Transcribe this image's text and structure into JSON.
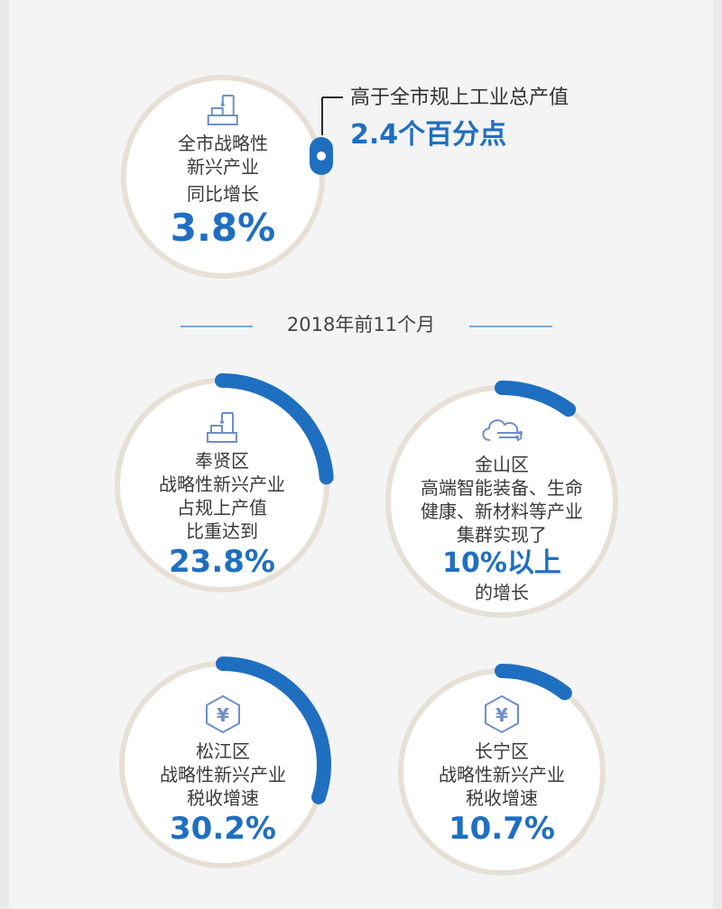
{
  "colors": {
    "accent": "#1f6fc0",
    "ring": "#e7e0d6",
    "background": "#f4f4f4",
    "icon": "#6f8fc9"
  },
  "overall": {
    "label_lines": [
      "全市战略性",
      "新兴产业",
      "同比增长"
    ],
    "value": "3.8%",
    "icon": "factory-robot-arm-icon"
  },
  "callout": {
    "label": "高于全市规上工业总产值",
    "value": "2.4个百分点"
  },
  "section_header": "2018年前11个月",
  "stats": [
    {
      "district": "奉贤区",
      "label_lines": [
        "奉贤区",
        "战略性新兴产业",
        "占规上产值",
        "比重达到"
      ],
      "value": "23.8%",
      "icon": "factory-robot-arm-icon",
      "progress": 0.238
    },
    {
      "district": "金山区",
      "label_lines": [
        "金山区",
        "高端智能装备、生命",
        "健康、新材料等产业",
        "集群实现了"
      ],
      "value": "10%以上",
      "suffix": "的增长",
      "icon": "cloud-network-icon",
      "progress": 0.1
    },
    {
      "district": "松江区",
      "label_lines": [
        "松江区",
        "战略性新兴产业",
        "税收增速"
      ],
      "value": "30.2%",
      "icon": "yen-coin-icon",
      "progress": 0.302
    },
    {
      "district": "长宁区",
      "label_lines": [
        "长宁区",
        "战略性新兴产业",
        "税收增速"
      ],
      "value": "10.7%",
      "icon": "yen-coin-icon",
      "progress": 0.107
    }
  ]
}
